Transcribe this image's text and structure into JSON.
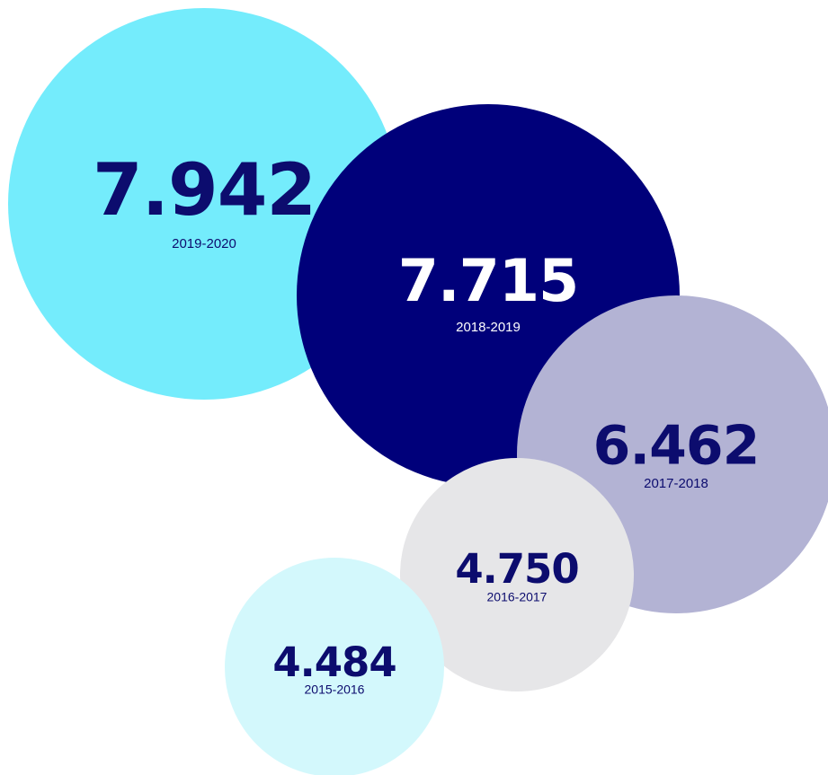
{
  "chart_data": {
    "type": "bubble",
    "bubbles": [
      {
        "label": "2015-2016",
        "value_text": "4.484",
        "value": 4484,
        "color": "#d3f8fc",
        "text_color": "#0c0c6e"
      },
      {
        "label": "2016-2017",
        "value_text": "4.750",
        "value": 4750,
        "color": "#e6e6e8",
        "text_color": "#0c0c6e"
      },
      {
        "label": "2017-2018",
        "value_text": "6.462",
        "value": 6462,
        "color": "#b3b3d4",
        "text_color": "#0c0c6e"
      },
      {
        "label": "2018-2019",
        "value_text": "7.715",
        "value": 7715,
        "color": "#00007a",
        "text_color": "#ffffff"
      },
      {
        "label": "2019-2020",
        "value_text": "7.942",
        "value": 7942,
        "color": "#74ecfc",
        "text_color": "#0c0c6e"
      }
    ]
  }
}
